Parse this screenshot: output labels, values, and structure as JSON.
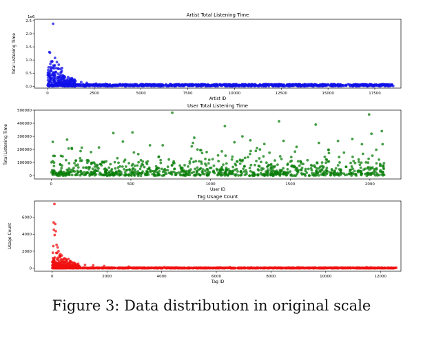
{
  "caption": "Figure 3: Data distribution in original scale",
  "chart_data": [
    {
      "type": "scatter",
      "title": "Artist Total Listening Time",
      "xlabel": "Artist ID",
      "ylabel": "Total Listening Time",
      "offset_label": "1e6",
      "color": "#1010e8",
      "xlim": [
        -700,
        18900
      ],
      "ylim": [
        -0.07,
        2.55
      ],
      "xticks": [
        0,
        2500,
        5000,
        7500,
        10000,
        12500,
        15000,
        17500
      ],
      "xtick_labels": [
        "0",
        "2500",
        "5000",
        "7500",
        "10000",
        "12500",
        "15000",
        "17500"
      ],
      "yticks": [
        0,
        0.5,
        1,
        1.5,
        2,
        2.5
      ],
      "ytick_labels": [
        "0.0",
        "0.5",
        "1.0",
        "1.5",
        "2.0",
        "2.5"
      ],
      "outliers": [
        [
          300,
          2.38
        ],
        [
          100,
          1.3
        ],
        [
          130,
          1.28
        ],
        [
          400,
          1.08
        ],
        [
          250,
          0.95
        ],
        [
          500,
          0.92
        ],
        [
          150,
          0.85
        ],
        [
          600,
          0.82
        ],
        [
          350,
          0.68
        ],
        [
          200,
          0.58
        ],
        [
          450,
          0.55
        ],
        [
          700,
          0.52
        ],
        [
          550,
          0.48
        ],
        [
          80,
          0.45
        ],
        [
          320,
          0.42
        ],
        [
          900,
          0.38
        ],
        [
          1100,
          0.35
        ],
        [
          780,
          0.31
        ],
        [
          650,
          0.28
        ],
        [
          1250,
          0.25
        ],
        [
          1500,
          0.2
        ],
        [
          1800,
          0.16
        ],
        [
          2100,
          0.13
        ],
        [
          2600,
          0.1
        ],
        [
          3100,
          0.09
        ],
        [
          4200,
          0.07
        ],
        [
          5600,
          0.06
        ],
        [
          7300,
          0.05
        ],
        [
          9800,
          0.05
        ],
        [
          12600,
          0.04
        ],
        [
          15200,
          0.04
        ],
        [
          17900,
          0.03
        ]
      ],
      "bulk": {
        "x_max": 18500,
        "y_scale": 0.08,
        "head_scale": 0.35,
        "head_x": 1500
      }
    },
    {
      "type": "scatter",
      "title": "User Total Listening Time",
      "xlabel": "User ID",
      "ylabel": "Total Listening Time",
      "color": "#0a7d0a",
      "xlim": [
        -105,
        2195
      ],
      "ylim": [
        -25000,
        500000
      ],
      "xticks": [
        0,
        500,
        1000,
        1500,
        2000
      ],
      "xtick_labels": [
        "0",
        "500",
        "1000",
        "1500",
        "2000"
      ],
      "yticks": [
        0,
        100000,
        200000,
        300000,
        400000,
        500000
      ],
      "ytick_labels": [
        "0",
        "100000",
        "200000",
        "300000",
        "400000",
        "500000"
      ],
      "outliers": [
        [
          760,
          480000
        ],
        [
          1430,
          415000
        ],
        [
          1995,
          467000
        ],
        [
          1660,
          390000
        ],
        [
          1090,
          378000
        ],
        [
          2075,
          340000
        ],
        [
          510,
          330000
        ],
        [
          390,
          325000
        ],
        [
          2010,
          320000
        ],
        [
          1200,
          300000
        ],
        [
          1890,
          280000
        ],
        [
          100,
          275000
        ],
        [
          450,
          260000
        ],
        [
          10,
          258000
        ],
        [
          1250,
          270000
        ],
        [
          1800,
          265000
        ],
        [
          1680,
          250000
        ],
        [
          1150,
          255000
        ],
        [
          620,
          232000
        ],
        [
          890,
          250000
        ],
        [
          1950,
          240000
        ],
        [
          300,
          215000
        ],
        [
          1540,
          220000
        ],
        [
          2080,
          240000
        ],
        [
          130,
          205000
        ],
        [
          1310,
          200000
        ],
        [
          700,
          232000
        ],
        [
          1740,
          198000
        ],
        [
          1370,
          175000
        ],
        [
          250,
          180000
        ],
        [
          940,
          195000
        ],
        [
          2040,
          198000
        ]
      ],
      "bulk": {
        "x_max": 2090,
        "y_scale": 38000,
        "spread": 150000
      }
    },
    {
      "type": "scatter",
      "title": "Tag Usage Count",
      "xlabel": "Tag ID",
      "ylabel": "Usage Count",
      "color": "#f01010",
      "xlim": [
        -650,
        12750
      ],
      "ylim": [
        -350,
        7900
      ],
      "xticks": [
        0,
        2000,
        4000,
        6000,
        8000,
        10000,
        12000
      ],
      "xtick_labels": [
        "0",
        "2000",
        "4000",
        "6000",
        "8000",
        "10000",
        "12000"
      ],
      "yticks": [
        0,
        2000,
        4000,
        6000
      ],
      "ytick_labels": [
        "0",
        "2000",
        "4000",
        "6000"
      ],
      "outliers": [
        [
          80,
          7550
        ],
        [
          50,
          5380
        ],
        [
          110,
          5200
        ],
        [
          60,
          4520
        ],
        [
          130,
          4350
        ],
        [
          90,
          3900
        ],
        [
          160,
          2750
        ],
        [
          40,
          2600
        ],
        [
          200,
          2450
        ],
        [
          230,
          2000
        ],
        [
          150,
          1800
        ],
        [
          300,
          1650
        ],
        [
          350,
          1500
        ],
        [
          280,
          1300
        ],
        [
          420,
          1100
        ],
        [
          520,
          950
        ],
        [
          650,
          800
        ],
        [
          800,
          650
        ],
        [
          950,
          520
        ],
        [
          1200,
          400
        ],
        [
          1500,
          350
        ],
        [
          1900,
          250
        ],
        [
          2800,
          180
        ],
        [
          4100,
          150
        ],
        [
          6500,
          120
        ],
        [
          9000,
          110
        ],
        [
          11500,
          100
        ]
      ],
      "bulk": {
        "x_max": 12600,
        "y_scale": 60,
        "head_scale": 600,
        "head_x": 1000
      }
    }
  ]
}
